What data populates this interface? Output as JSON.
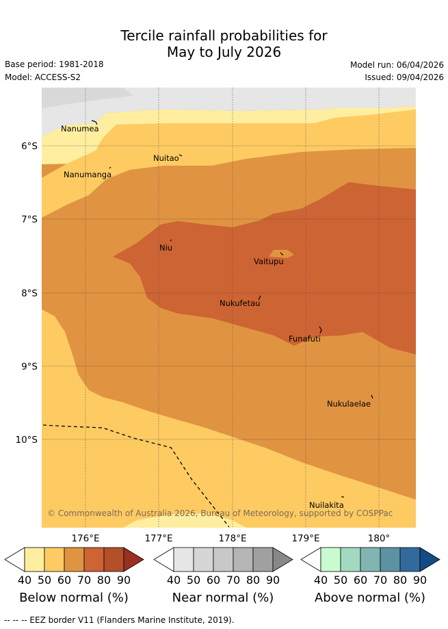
{
  "title": {
    "line1": "Tercile rainfall probabilities for",
    "line2": "May to July 2026"
  },
  "meta": {
    "base_period": "Base period: 1981-2018",
    "model": "Model: ACCESS-S2",
    "model_run": "Model run: 06/04/2026",
    "issued": "Issued: 09/04/2026"
  },
  "map": {
    "lat_labels": [
      "6°S",
      "7°S",
      "8°S",
      "9°S",
      "10°S"
    ],
    "lon_labels": [
      "176°E",
      "177°E",
      "178°E",
      "179°E",
      "180°"
    ],
    "places": [
      "Nanumea",
      "Nuitao",
      "Nanumanga",
      "Niu",
      "Vaitupu",
      "Nukufetau",
      "Funafuti",
      "Nukulaelae",
      "Nuilakita"
    ],
    "copyright": "© Commonwealth of Australia 2026, Bureau of Meteorology, supported by COSPPac"
  },
  "colors": {
    "below": [
      "#ffeea0",
      "#fecb63",
      "#e09441",
      "#cd6433",
      "#b44f2a",
      "#9a3020"
    ],
    "near": [
      "#e6e6e6",
      "#d6d6d6",
      "#c8c8c8",
      "#b5b5b5",
      "#a0a0a0",
      "#888888"
    ],
    "above": [
      "#c9fbd0",
      "#a3d9bf",
      "#7fb6b2",
      "#5c93a3",
      "#336a9c",
      "#134b84"
    ]
  },
  "colorbars": {
    "ticks": [
      "40",
      "50",
      "60",
      "70",
      "80",
      "90"
    ],
    "below_label": "Below normal (%)",
    "near_label": "Near normal (%)",
    "above_label": "Above normal (%)"
  },
  "footer": "--  --  -- EEZ border V11 (Flanders Marine Institute, 2019)."
}
